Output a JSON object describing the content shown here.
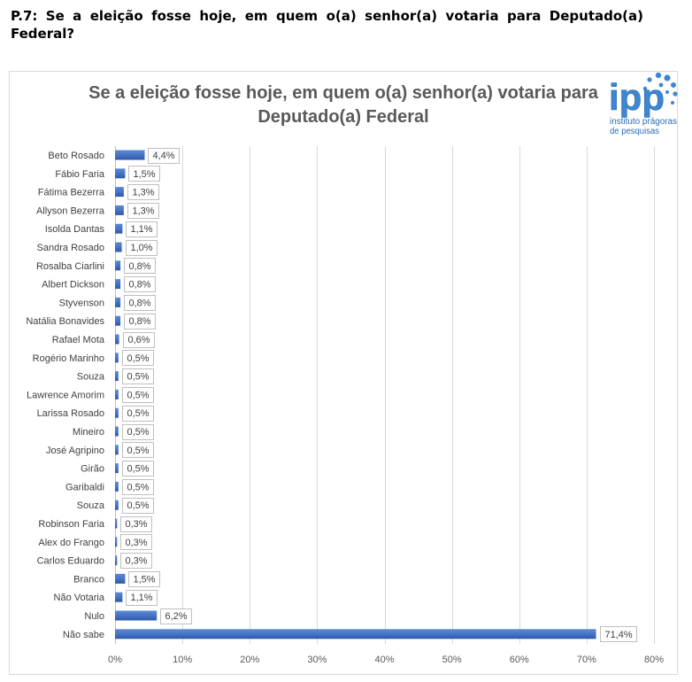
{
  "heading": {
    "line1": "P.7: Se a eleição fosse hoje, em quem o(a) senhor(a) votaria para Deputado(a)",
    "line2": "Federal?"
  },
  "logo": {
    "mark": "ipp",
    "line1": "instituto prágoras",
    "line2": "de pesquisas",
    "color": "#3f86d0"
  },
  "chart_data": {
    "type": "bar",
    "orientation": "horizontal",
    "title": "Se a eleição fosse hoje, em quem o(a) senhor(a) votaria para Deputado(a) Federal",
    "xlabel": "",
    "ylabel": "",
    "categories": [
      "Beto Rosado",
      "Fábio Faria",
      "Fátima Bezerra",
      "Allyson Bezerra",
      "Isolda Dantas",
      "Sandra Rosado",
      "Rosalba Ciarlini",
      "Albert Dickson",
      "Styvenson",
      "Natália Bonavides",
      "Rafael Mota",
      "Rogério Marinho",
      "Souza",
      "Lawrence Amorim",
      "Larissa Rosado",
      "Mineiro",
      "José Agripino",
      "Girão",
      "Garibaldi",
      "Souza",
      "Robinson Faria",
      "Alex do Frango",
      "Carlos Eduardo",
      "Branco",
      "Não Votaria",
      "Nulo",
      "Não sabe"
    ],
    "values": [
      4.4,
      1.5,
      1.3,
      1.3,
      1.1,
      1.0,
      0.8,
      0.8,
      0.8,
      0.8,
      0.6,
      0.5,
      0.5,
      0.5,
      0.5,
      0.5,
      0.5,
      0.5,
      0.5,
      0.5,
      0.3,
      0.3,
      0.3,
      1.5,
      1.1,
      6.2,
      71.4
    ],
    "value_labels": [
      "4,4%",
      "1,5%",
      "1,3%",
      "1,3%",
      "1,1%",
      "1,0%",
      "0,8%",
      "0,8%",
      "0,8%",
      "0,8%",
      "0,6%",
      "0,5%",
      "0,5%",
      "0,5%",
      "0,5%",
      "0,5%",
      "0,5%",
      "0,5%",
      "0,5%",
      "0,5%",
      "0,3%",
      "0,3%",
      "0,3%",
      "1,5%",
      "1,1%",
      "6,2%",
      "71,4%"
    ],
    "x_ticks": [
      0,
      10,
      20,
      30,
      40,
      50,
      60,
      70,
      80
    ],
    "x_tick_labels": [
      "0%",
      "10%",
      "20%",
      "30%",
      "40%",
      "50%",
      "60%",
      "70%",
      "80%"
    ],
    "xlim": [
      0,
      80
    ],
    "grid": true,
    "bar_color": "#4472c4"
  }
}
